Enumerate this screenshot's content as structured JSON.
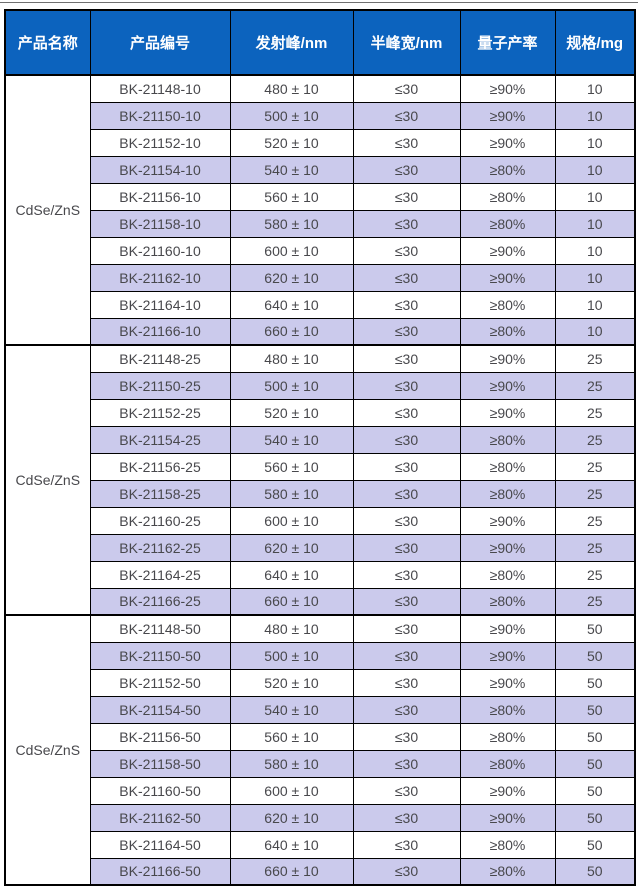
{
  "colors": {
    "header_bg": "#0c63be",
    "header_text": "#ffffff",
    "row_alt_bg": "#cbcaec",
    "row_bg": "#ffffff",
    "text": "#48484c",
    "border": "#000000",
    "top_line": "#6f6f6f"
  },
  "table": {
    "columns": [
      "产品名称",
      "产品编号",
      "发射峰/nm",
      "半峰宽/nm",
      "量子产率",
      "规格/mg"
    ],
    "groups": [
      {
        "product_name": "CdSe/ZnS",
        "rows": [
          {
            "code": "BK-21148-10",
            "emission_peak": "480 ± 10",
            "fwhm": "≤30",
            "quantum_yield": "≥90%",
            "spec_mg": "10"
          },
          {
            "code": "BK-21150-10",
            "emission_peak": "500 ± 10",
            "fwhm": "≤30",
            "quantum_yield": "≥90%",
            "spec_mg": "10"
          },
          {
            "code": "BK-21152-10",
            "emission_peak": "520 ± 10",
            "fwhm": "≤30",
            "quantum_yield": "≥90%",
            "spec_mg": "10"
          },
          {
            "code": "BK-21154-10",
            "emission_peak": "540 ± 10",
            "fwhm": "≤30",
            "quantum_yield": "≥80%",
            "spec_mg": "10"
          },
          {
            "code": "BK-21156-10",
            "emission_peak": "560 ± 10",
            "fwhm": "≤30",
            "quantum_yield": "≥80%",
            "spec_mg": "10"
          },
          {
            "code": "BK-21158-10",
            "emission_peak": "580 ± 10",
            "fwhm": "≤30",
            "quantum_yield": "≥80%",
            "spec_mg": "10"
          },
          {
            "code": "BK-21160-10",
            "emission_peak": "600 ± 10",
            "fwhm": "≤30",
            "quantum_yield": "≥90%",
            "spec_mg": "10"
          },
          {
            "code": "BK-21162-10",
            "emission_peak": "620 ± 10",
            "fwhm": "≤30",
            "quantum_yield": "≥90%",
            "spec_mg": "10"
          },
          {
            "code": "BK-21164-10",
            "emission_peak": "640 ± 10",
            "fwhm": "≤30",
            "quantum_yield": "≥80%",
            "spec_mg": "10"
          },
          {
            "code": "BK-21166-10",
            "emission_peak": "660 ± 10",
            "fwhm": "≤30",
            "quantum_yield": "≥80%",
            "spec_mg": "10"
          }
        ]
      },
      {
        "product_name": "CdSe/ZnS",
        "rows": [
          {
            "code": "BK-21148-25",
            "emission_peak": "480 ± 10",
            "fwhm": "≤30",
            "quantum_yield": "≥90%",
            "spec_mg": "25"
          },
          {
            "code": "BK-21150-25",
            "emission_peak": "500 ± 10",
            "fwhm": "≤30",
            "quantum_yield": "≥90%",
            "spec_mg": "25"
          },
          {
            "code": "BK-21152-25",
            "emission_peak": "520 ± 10",
            "fwhm": "≤30",
            "quantum_yield": "≥90%",
            "spec_mg": "25"
          },
          {
            "code": "BK-21154-25",
            "emission_peak": "540 ± 10",
            "fwhm": "≤30",
            "quantum_yield": "≥80%",
            "spec_mg": "25"
          },
          {
            "code": "BK-21156-25",
            "emission_peak": "560 ± 10",
            "fwhm": "≤30",
            "quantum_yield": "≥80%",
            "spec_mg": "25"
          },
          {
            "code": "BK-21158-25",
            "emission_peak": "580 ± 10",
            "fwhm": "≤30",
            "quantum_yield": "≥80%",
            "spec_mg": "25"
          },
          {
            "code": "BK-21160-25",
            "emission_peak": "600 ± 10",
            "fwhm": "≤30",
            "quantum_yield": "≥90%",
            "spec_mg": "25"
          },
          {
            "code": "BK-21162-25",
            "emission_peak": "620 ± 10",
            "fwhm": "≤30",
            "quantum_yield": "≥90%",
            "spec_mg": "25"
          },
          {
            "code": "BK-21164-25",
            "emission_peak": "640 ± 10",
            "fwhm": "≤30",
            "quantum_yield": "≥80%",
            "spec_mg": "25"
          },
          {
            "code": "BK-21166-25",
            "emission_peak": "660 ± 10",
            "fwhm": "≤30",
            "quantum_yield": "≥80%",
            "spec_mg": "25"
          }
        ]
      },
      {
        "product_name": "CdSe/ZnS",
        "rows": [
          {
            "code": "BK-21148-50",
            "emission_peak": "480 ± 10",
            "fwhm": "≤30",
            "quantum_yield": "≥90%",
            "spec_mg": "50"
          },
          {
            "code": "BK-21150-50",
            "emission_peak": "500 ± 10",
            "fwhm": "≤30",
            "quantum_yield": "≥90%",
            "spec_mg": "50"
          },
          {
            "code": "BK-21152-50",
            "emission_peak": "520 ± 10",
            "fwhm": "≤30",
            "quantum_yield": "≥90%",
            "spec_mg": "50"
          },
          {
            "code": "BK-21154-50",
            "emission_peak": "540 ± 10",
            "fwhm": "≤30",
            "quantum_yield": "≥80%",
            "spec_mg": "50"
          },
          {
            "code": "BK-21156-50",
            "emission_peak": "560 ± 10",
            "fwhm": "≤30",
            "quantum_yield": "≥80%",
            "spec_mg": "50"
          },
          {
            "code": "BK-21158-50",
            "emission_peak": "580 ± 10",
            "fwhm": "≤30",
            "quantum_yield": "≥80%",
            "spec_mg": "50"
          },
          {
            "code": "BK-21160-50",
            "emission_peak": "600 ± 10",
            "fwhm": "≤30",
            "quantum_yield": "≥90%",
            "spec_mg": "50"
          },
          {
            "code": "BK-21162-50",
            "emission_peak": "620 ± 10",
            "fwhm": "≤30",
            "quantum_yield": "≥90%",
            "spec_mg": "50"
          },
          {
            "code": "BK-21164-50",
            "emission_peak": "640 ± 10",
            "fwhm": "≤30",
            "quantum_yield": "≥80%",
            "spec_mg": "50"
          },
          {
            "code": "BK-21166-50",
            "emission_peak": "660 ± 10",
            "fwhm": "≤30",
            "quantum_yield": "≥80%",
            "spec_mg": "50"
          }
        ]
      }
    ]
  }
}
